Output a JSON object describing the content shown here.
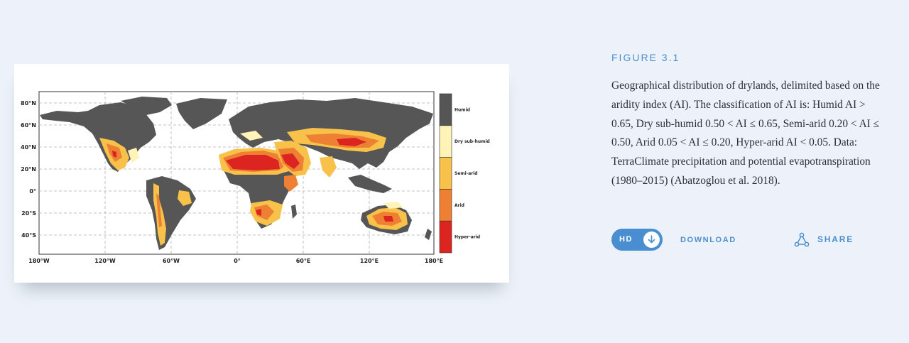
{
  "figure": {
    "label": "FIGURE 3.1",
    "caption": "Geographical distribution of drylands, delimited based on the aridity index (AI). The classification of AI is: Humid AI > 0.65, Dry sub-humid 0.50 < AI ≤ 0.65, Semi-arid 0.20 < AI ≤ 0.50, Arid 0.05 < AI ≤ 0.20, Hyper-arid AI < 0.05. Data: TerraClimate precipitation and potential evapotranspiration (1980–2015) (Abatzoglou et al. 2018)."
  },
  "map": {
    "lat_labels": [
      "80°N",
      "60°N",
      "40°N",
      "20°N",
      "0°",
      "20°S",
      "40°S"
    ],
    "lon_labels": [
      "180°W",
      "120°W",
      "60°W",
      "0°",
      "60°E",
      "120°E",
      "180°E"
    ],
    "legend": [
      {
        "label": "Humid",
        "color": "#555555"
      },
      {
        "label": "Dry sub-humid",
        "color": "#fff3b8"
      },
      {
        "label": "Semi-arid",
        "color": "#f8c14a"
      },
      {
        "label": "Arid",
        "color": "#ee8034"
      },
      {
        "label": "Hyper-arid",
        "color": "#dc2420"
      }
    ]
  },
  "actions": {
    "hd_label": "HD",
    "download_label": "DOWNLOAD",
    "share_label": "SHARE"
  },
  "icons": {
    "download": "download-arrow-icon",
    "share": "share-network-icon"
  },
  "colors": {
    "accent": "#4a8fd0",
    "background": "#edf2fa",
    "land_humid": "#555555",
    "ocean_grid": "#aaaaaa"
  }
}
